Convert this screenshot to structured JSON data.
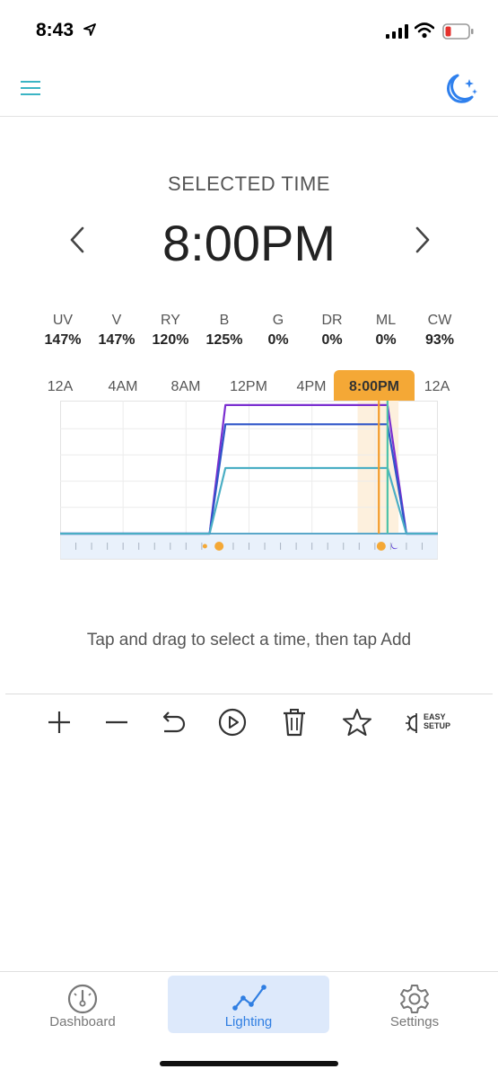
{
  "status_bar": {
    "time": "8:43"
  },
  "header": {
    "menu_icon": "menu-icon",
    "night_icon": "moon-stars-icon",
    "accent": "#2f80ed"
  },
  "selected": {
    "label": "SELECTED TIME",
    "time": "8:00PM"
  },
  "channels": [
    {
      "name": "UV",
      "value": "147%"
    },
    {
      "name": "V",
      "value": "147%"
    },
    {
      "name": "RY",
      "value": "120%"
    },
    {
      "name": "B",
      "value": "125%"
    },
    {
      "name": "G",
      "value": "0%"
    },
    {
      "name": "DR",
      "value": "0%"
    },
    {
      "name": "ML",
      "value": "0%"
    },
    {
      "name": "CW",
      "value": "93%"
    }
  ],
  "time_axis": {
    "labels": [
      "12A",
      "4AM",
      "8AM",
      "12PM",
      "4PM",
      "12A"
    ],
    "selected_label": "8:00PM",
    "selected_color": "#f4a836"
  },
  "chart_data": {
    "type": "line",
    "x_unit": "hour of day",
    "xlim": [
      0,
      24
    ],
    "selected_hour": 20,
    "series": [
      {
        "color": "#7b2fd0",
        "points": [
          [
            0,
            0
          ],
          [
            9.5,
            0
          ],
          [
            10.5,
            147
          ],
          [
            20.8,
            147
          ],
          [
            22,
            0
          ],
          [
            24,
            0
          ]
        ]
      },
      {
        "color": "#2f55c8",
        "points": [
          [
            0,
            0
          ],
          [
            9.5,
            0
          ],
          [
            10.5,
            125
          ],
          [
            20.8,
            125
          ],
          [
            22,
            0
          ],
          [
            24,
            0
          ]
        ]
      },
      {
        "color": "#4aaec4",
        "points": [
          [
            0,
            0
          ],
          [
            9.5,
            0
          ],
          [
            10.5,
            75
          ],
          [
            20.8,
            75
          ],
          [
            22,
            0
          ],
          [
            24,
            0
          ]
        ]
      }
    ],
    "markers": [
      {
        "hour": 20.25,
        "color": "#f39c2a"
      },
      {
        "hour": 20.8,
        "color": "#4ec2a8"
      }
    ]
  },
  "hint": "Tap and drag to select a time, then tap Add",
  "toolbar": {
    "icons": [
      "plus-icon",
      "minus-icon",
      "undo-icon",
      "play-icon",
      "trash-icon",
      "star-icon",
      "easy-setup-icon"
    ],
    "easy_line1": "EASY",
    "easy_line2": "SETUP"
  },
  "tabs": [
    {
      "label": "Dashboard",
      "icon": "gauge-icon",
      "active": false
    },
    {
      "label": "Lighting",
      "icon": "graph-icon",
      "active": true
    },
    {
      "label": "Settings",
      "icon": "gear-icon",
      "active": false
    }
  ]
}
